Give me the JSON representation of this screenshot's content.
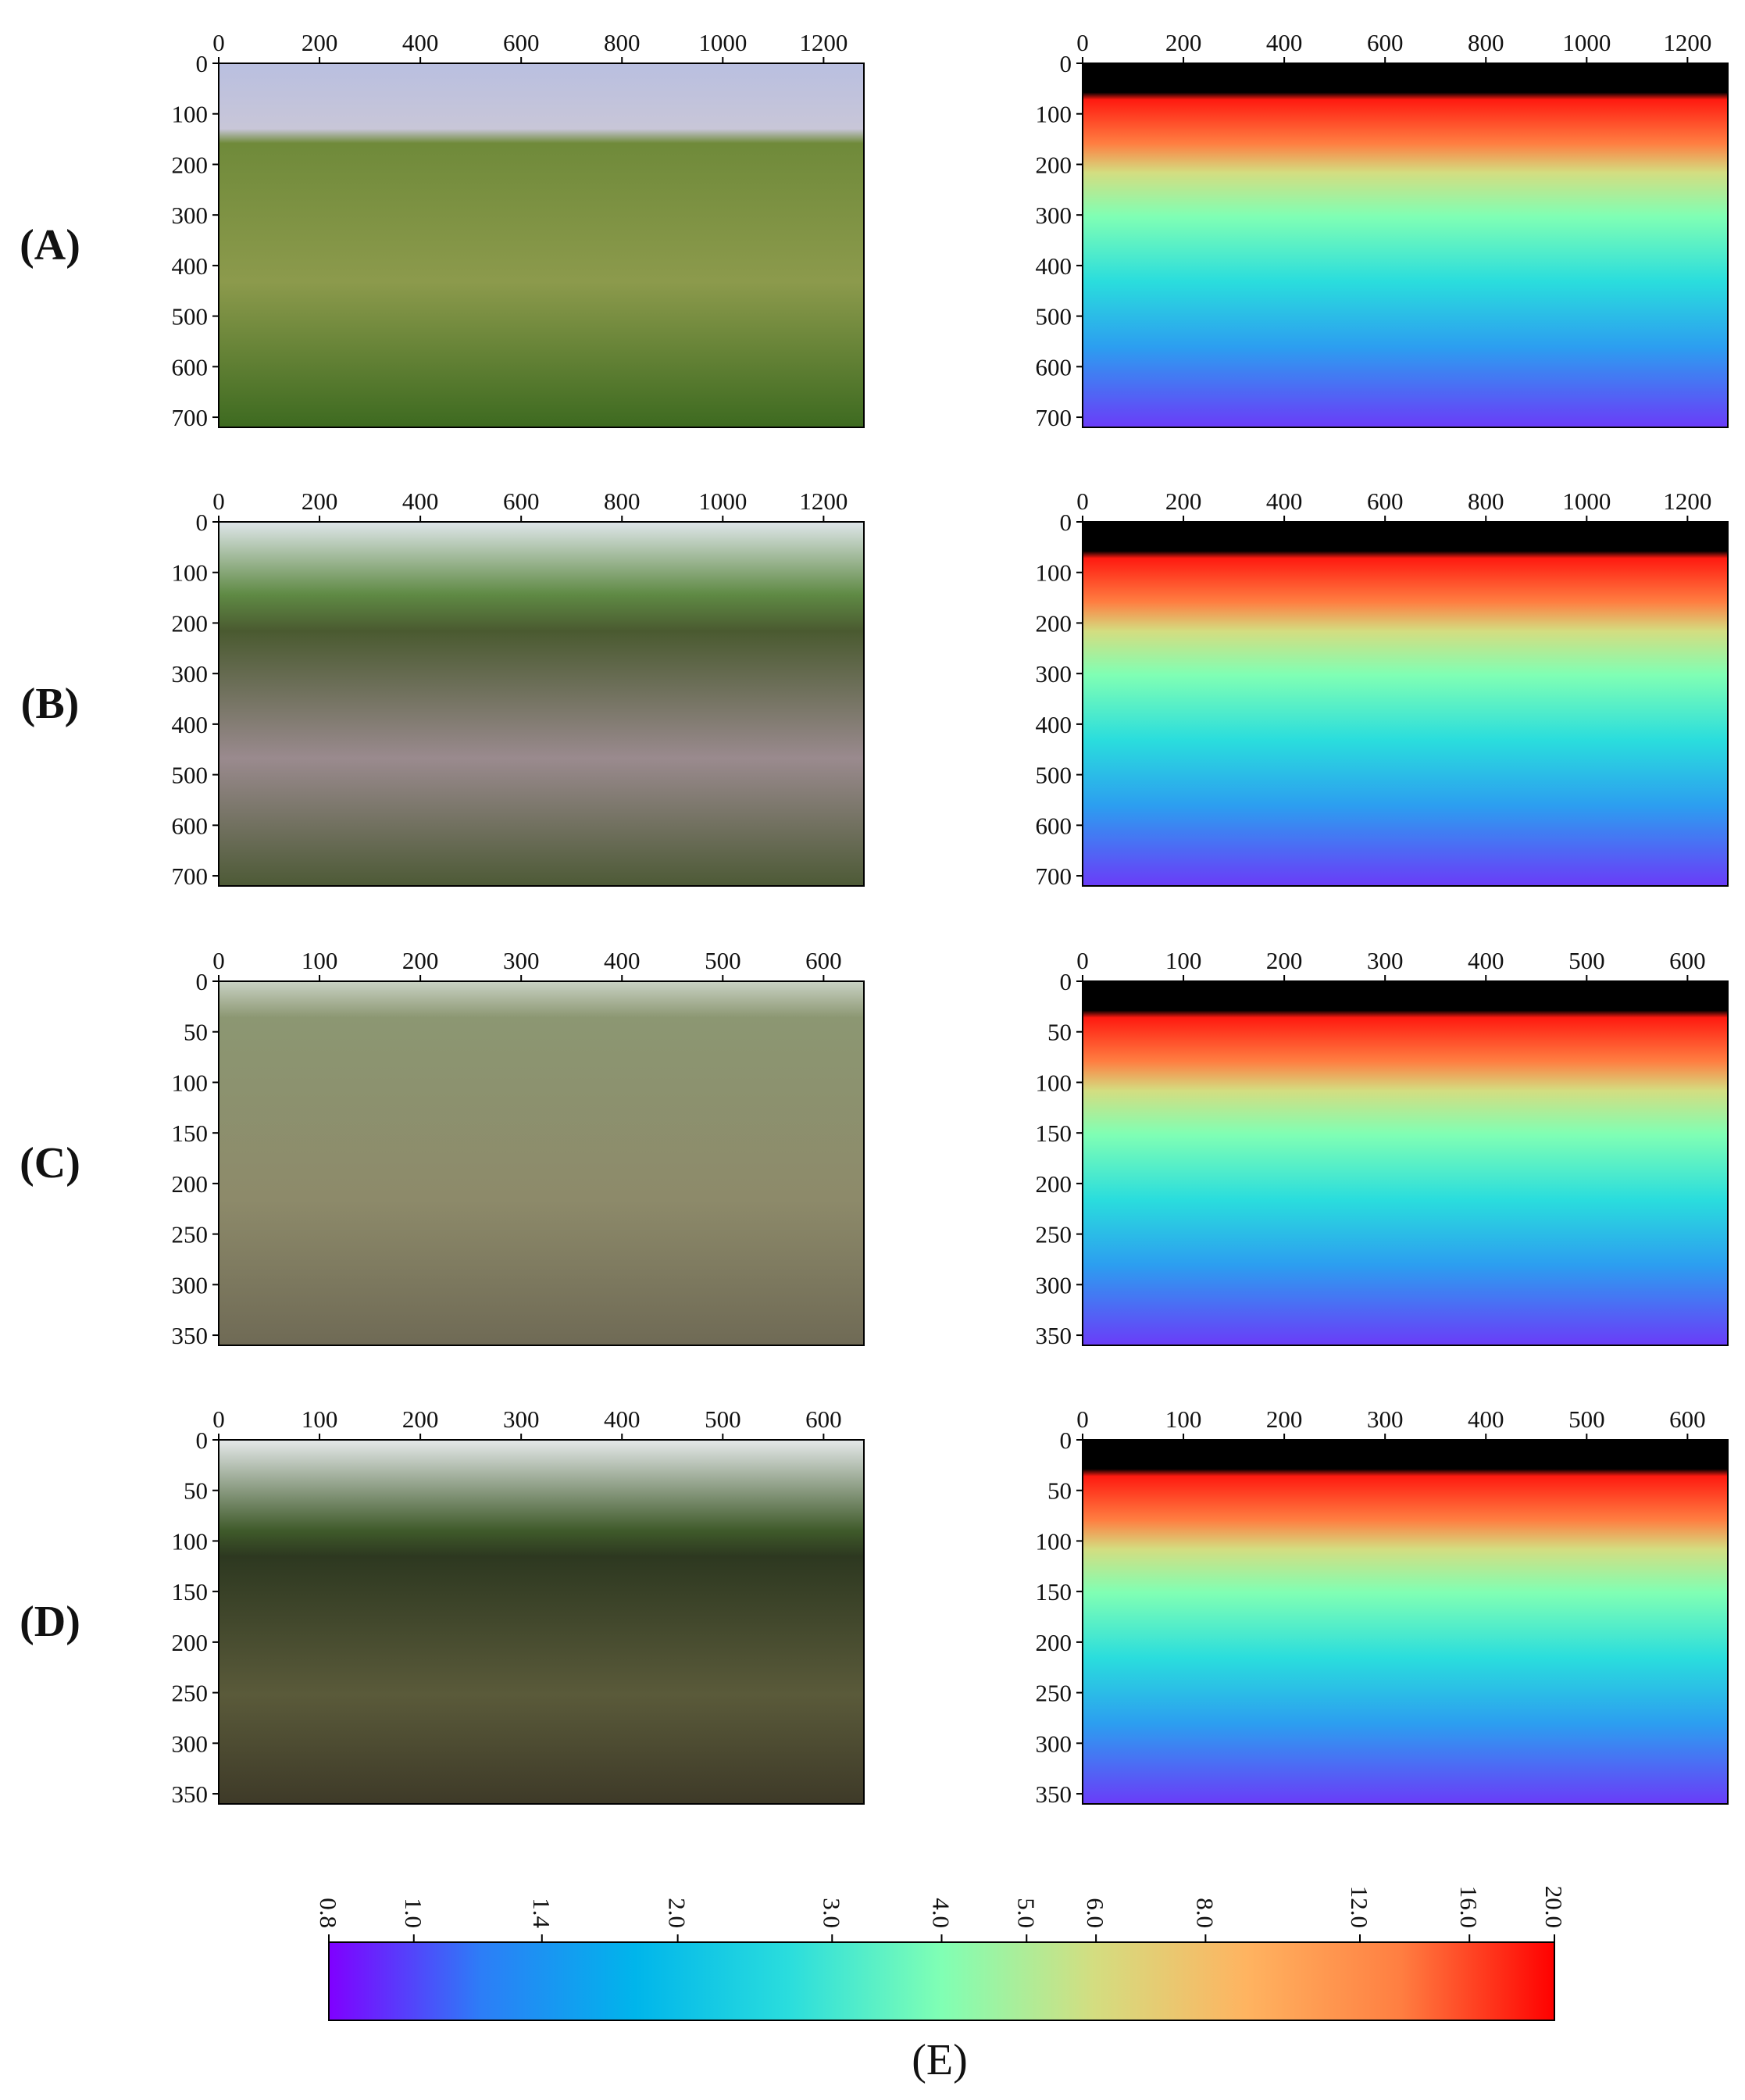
{
  "rows": [
    {
      "label": "(A)",
      "panels": [
        {
          "kind": "photo",
          "xlim": [
            0,
            1280
          ],
          "xticks": [
            0,
            200,
            400,
            600,
            800,
            1000,
            1200
          ],
          "ylim": [
            720,
            0
          ],
          "yticks": [
            0,
            100,
            200,
            300,
            400,
            500,
            600,
            700
          ]
        },
        {
          "kind": "depth",
          "xlim": [
            0,
            1280
          ],
          "xticks": [
            0,
            200,
            400,
            600,
            800,
            1000,
            1200
          ],
          "ylim": [
            720,
            0
          ],
          "yticks": [
            0,
            100,
            200,
            300,
            400,
            500,
            600,
            700
          ]
        }
      ]
    },
    {
      "label": "(B)",
      "panels": [
        {
          "kind": "photo",
          "xlim": [
            0,
            1280
          ],
          "xticks": [
            0,
            200,
            400,
            600,
            800,
            1000,
            1200
          ],
          "ylim": [
            720,
            0
          ],
          "yticks": [
            0,
            100,
            200,
            300,
            400,
            500,
            600,
            700
          ]
        },
        {
          "kind": "depth",
          "xlim": [
            0,
            1280
          ],
          "xticks": [
            0,
            200,
            400,
            600,
            800,
            1000,
            1200
          ],
          "ylim": [
            720,
            0
          ],
          "yticks": [
            0,
            100,
            200,
            300,
            400,
            500,
            600,
            700
          ]
        }
      ]
    },
    {
      "label": "(C)",
      "panels": [
        {
          "kind": "photo",
          "xlim": [
            0,
            640
          ],
          "xticks": [
            0,
            100,
            200,
            300,
            400,
            500,
            600
          ],
          "ylim": [
            360,
            0
          ],
          "yticks": [
            0,
            50,
            100,
            150,
            200,
            250,
            300,
            350
          ]
        },
        {
          "kind": "depth",
          "xlim": [
            0,
            640
          ],
          "xticks": [
            0,
            100,
            200,
            300,
            400,
            500,
            600
          ],
          "ylim": [
            360,
            0
          ],
          "yticks": [
            0,
            50,
            100,
            150,
            200,
            250,
            300,
            350
          ]
        }
      ]
    },
    {
      "label": "(D)",
      "panels": [
        {
          "kind": "photo",
          "xlim": [
            0,
            640
          ],
          "xticks": [
            0,
            100,
            200,
            300,
            400,
            500,
            600
          ],
          "ylim": [
            360,
            0
          ],
          "yticks": [
            0,
            50,
            100,
            150,
            200,
            250,
            300,
            350
          ]
        },
        {
          "kind": "depth",
          "xlim": [
            0,
            640
          ],
          "xticks": [
            0,
            100,
            200,
            300,
            400,
            500,
            600
          ],
          "ylim": [
            360,
            0
          ],
          "yticks": [
            0,
            50,
            100,
            150,
            200,
            250,
            300,
            350
          ]
        }
      ]
    }
  ],
  "colorbar": {
    "label": "(E)",
    "scale": "log",
    "lim": [
      0.8,
      20
    ],
    "ticks": [
      {
        "value": 0.8,
        "label": "0.8"
      },
      {
        "value": 1,
        "label": "1.0"
      },
      {
        "value": 1.4,
        "label": "1.4"
      },
      {
        "value": 2,
        "label": "2.0"
      },
      {
        "value": 3,
        "label": "3.0"
      },
      {
        "value": 4,
        "label": "4.0"
      },
      {
        "value": 5,
        "label": "5.0"
      },
      {
        "value": 6,
        "label": "6.0"
      },
      {
        "value": 8,
        "label": "8.0"
      },
      {
        "value": 12,
        "label": "12.0"
      },
      {
        "value": 16,
        "label": "16.0"
      },
      {
        "value": 20,
        "label": "20.0"
      }
    ],
    "colors": [
      "#8000ff",
      "#2c7ef7",
      "#00b5eb",
      "#2adddd",
      "#80ffb4",
      "#d4dd80",
      "#ffb360",
      "#ff7e41",
      "#ff0000"
    ]
  }
}
